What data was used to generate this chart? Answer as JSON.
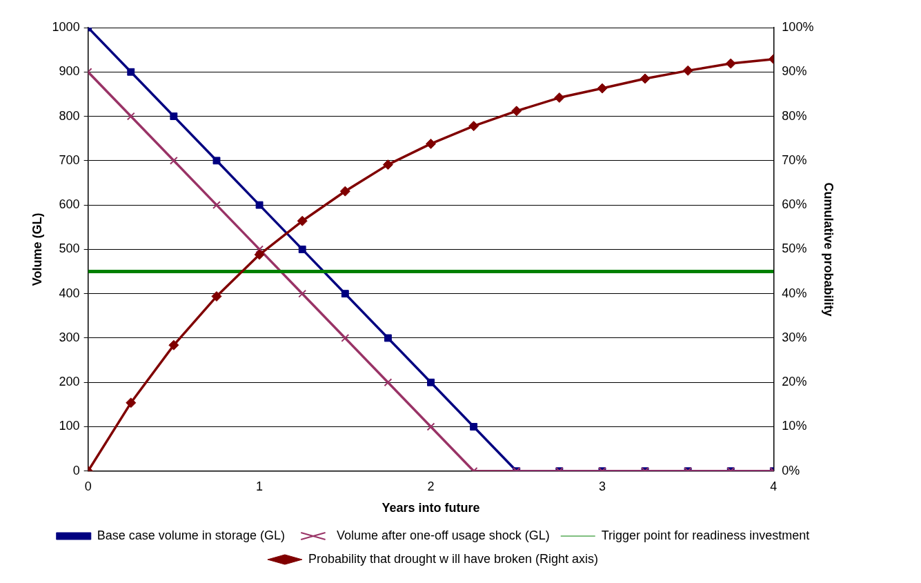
{
  "chart_data": {
    "type": "line",
    "xlabel": "Years into future",
    "ylabel": "Volume (GL)",
    "y2label": "Cumulative probability",
    "x": [
      0,
      0.25,
      0.5,
      0.75,
      1,
      1.25,
      1.5,
      1.75,
      2,
      2.25,
      2.5,
      2.75,
      3,
      3.25,
      3.5,
      3.75,
      4
    ],
    "xlim": [
      0,
      4
    ],
    "xticks": [
      0,
      1,
      2,
      3,
      4
    ],
    "ylim": [
      0,
      1000
    ],
    "yticks": [
      0,
      100,
      200,
      300,
      400,
      500,
      600,
      700,
      800,
      900,
      1000
    ],
    "y2lim": [
      0,
      100
    ],
    "y2ticks": [
      {
        "value": 0,
        "label": "0%"
      },
      {
        "value": 10,
        "label": "10%"
      },
      {
        "value": 20,
        "label": "20%"
      },
      {
        "value": 30,
        "label": "30%"
      },
      {
        "value": 40,
        "label": "40%"
      },
      {
        "value": 50,
        "label": "50%"
      },
      {
        "value": 60,
        "label": "60%"
      },
      {
        "value": 70,
        "label": "70%"
      },
      {
        "value": 80,
        "label": "80%"
      },
      {
        "value": 90,
        "label": "90%"
      },
      {
        "value": 100,
        "label": "100%"
      }
    ],
    "grid": "y",
    "legend": "bottom",
    "line_style": "solid",
    "series": [
      {
        "name": "Base case volume in storage (GL)",
        "color": "#000080",
        "marker": "square",
        "values": [
          1000,
          900,
          800,
          700,
          600,
          500,
          400,
          300,
          200,
          100,
          0,
          0,
          0,
          0,
          0,
          0,
          0
        ]
      },
      {
        "name": "Volume after one-off usage shock (GL)",
        "color": "#993366",
        "marker": "cross",
        "values": [
          900,
          800,
          700,
          600,
          500,
          400,
          300,
          200,
          100,
          0,
          0,
          0,
          0,
          0,
          0,
          0,
          0
        ]
      },
      {
        "name": "Trigger point for readiness investment",
        "color": "#008000",
        "marker": "none",
        "values": [
          450,
          450,
          450,
          450,
          450,
          450,
          450,
          450,
          450,
          450,
          450,
          450,
          450,
          450,
          450,
          450,
          450
        ]
      },
      {
        "name": "Probability that drought w ill have broken (Right axis)",
        "color": "#800000",
        "marker": "diamond",
        "axis": "y2",
        "values": [
          0,
          15.4,
          28.4,
          39.4,
          48.8,
          56.4,
          63.1,
          69.1,
          73.8,
          77.8,
          81.2,
          84.2,
          86.3,
          88.5,
          90.3,
          91.9,
          92.9
        ]
      }
    ]
  }
}
